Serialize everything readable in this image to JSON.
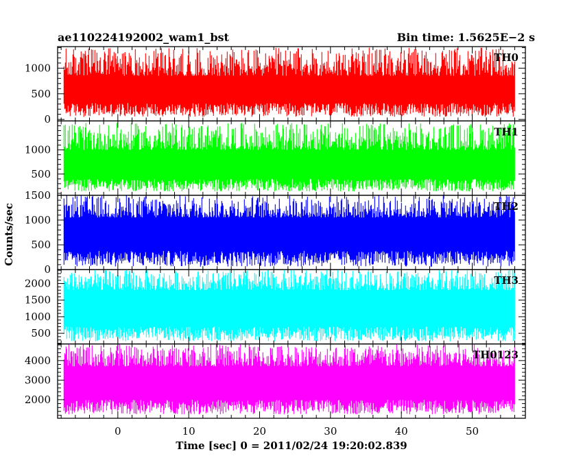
{
  "header": {
    "title": "ae110224192002_wam1_bst",
    "bin_time": "Bin time: 1.5625E−2 s"
  },
  "chart_data": {
    "type": "line",
    "xlabel": "Time [sec] 0 = 2011/02/24 19:20:02.839",
    "ylabel": "Counts/sec",
    "xlim": [
      -8.5,
      57.5
    ],
    "x_ticks": [
      0,
      10,
      20,
      30,
      40,
      50
    ],
    "x_minor_step": 2,
    "data_x_range": [
      -7.6,
      56.0
    ],
    "panels": [
      {
        "name": "TH0",
        "color": "#ff0000",
        "ylim": [
          -30,
          1420
        ],
        "y_ticks": [
          0,
          500,
          1000
        ],
        "y_minor_step": 100,
        "envelope": {
          "low_min": 50,
          "low_max": 320,
          "high_min": 850,
          "high_max": 1400
        }
      },
      {
        "name": "TH1",
        "color": "#00ff00",
        "ylim": [
          60,
          1600
        ],
        "y_ticks": [
          500,
          1000
        ],
        "y_minor_step": 100,
        "envelope": {
          "low_min": 140,
          "low_max": 400,
          "high_min": 1000,
          "high_max": 1560
        }
      },
      {
        "name": "TH2",
        "color": "#0000ff",
        "ylim": [
          0,
          1500
        ],
        "y_ticks": [
          0,
          500,
          1000,
          1500
        ],
        "y_minor_step": 100,
        "envelope": {
          "low_min": 60,
          "low_max": 380,
          "high_min": 1050,
          "high_max": 1500
        }
      },
      {
        "name": "TH3",
        "color": "#00ffff",
        "ylim": [
          180,
          2420
        ],
        "y_ticks": [
          500,
          1000,
          1500,
          2000
        ],
        "y_minor_step": 100,
        "envelope": {
          "low_min": 260,
          "low_max": 700,
          "high_min": 1800,
          "high_max": 2420
        }
      },
      {
        "name": "TH0123",
        "color": "#ff00ff",
        "ylim": [
          1050,
          4850
        ],
        "y_ticks": [
          2000,
          3000,
          4000
        ],
        "y_minor_step": 200,
        "envelope": {
          "low_min": 1250,
          "low_max": 2000,
          "high_min": 3700,
          "high_max": 4850
        }
      }
    ]
  }
}
